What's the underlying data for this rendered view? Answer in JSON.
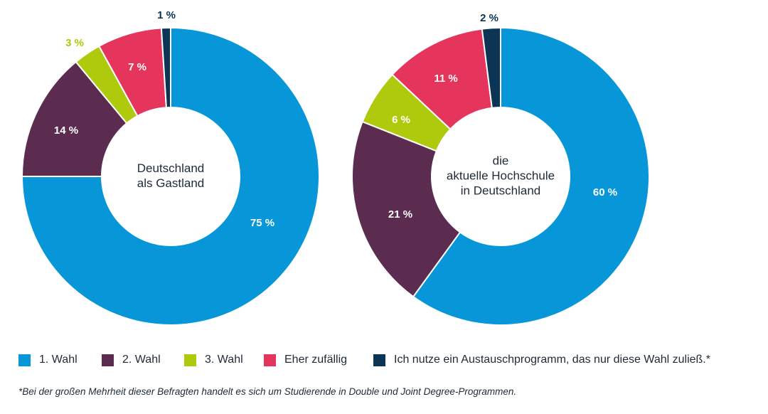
{
  "chart_data": [
    {
      "type": "pie",
      "variant": "donut",
      "title": "",
      "center_label": [
        "Deutschland",
        "als Gastland"
      ],
      "categories": [
        "1. Wahl",
        "2. Wahl",
        "3. Wahl",
        "Eher zufällig",
        "Ich nutze ein Austauschprogramm, das nur diese Wahl zuließ.*"
      ],
      "values": [
        75,
        14,
        3,
        7,
        1
      ],
      "value_labels": [
        "75 %",
        "14 %",
        "3 %",
        "7 %",
        "1 %"
      ]
    },
    {
      "type": "pie",
      "variant": "donut",
      "title": "",
      "center_label": [
        "die",
        "aktuelle Hochschule",
        "in Deutschland"
      ],
      "categories": [
        "1. Wahl",
        "2. Wahl",
        "3. Wahl",
        "Eher zufällig",
        "Ich nutze ein Austauschprogramm, das nur diese Wahl zuließ.*"
      ],
      "values": [
        60,
        21,
        6,
        11,
        2
      ],
      "value_labels": [
        "60 %",
        "21 %",
        "6 %",
        "11 %",
        "2 %"
      ]
    }
  ],
  "legend": [
    {
      "label": "1. Wahl",
      "color": "#0797d8"
    },
    {
      "label": "2. Wahl",
      "color": "#5b2b50"
    },
    {
      "label": "3. Wahl",
      "color": "#afc90c"
    },
    {
      "label": "Eher zufällig",
      "color": "#e6355c"
    },
    {
      "label": "Ich nutze ein Austauschprogramm, das nur diese Wahl zuließ.*",
      "color": "#0c3454"
    }
  ],
  "label_colors": {
    "inside": "#ffffff",
    "outside_small": "#afc90c",
    "outside_dark": "#0c3454"
  },
  "footnote": "*Bei der großen Mehrheit dieser Befragten handelt es sich um Studierende in Double und Joint Degree-Programmen."
}
